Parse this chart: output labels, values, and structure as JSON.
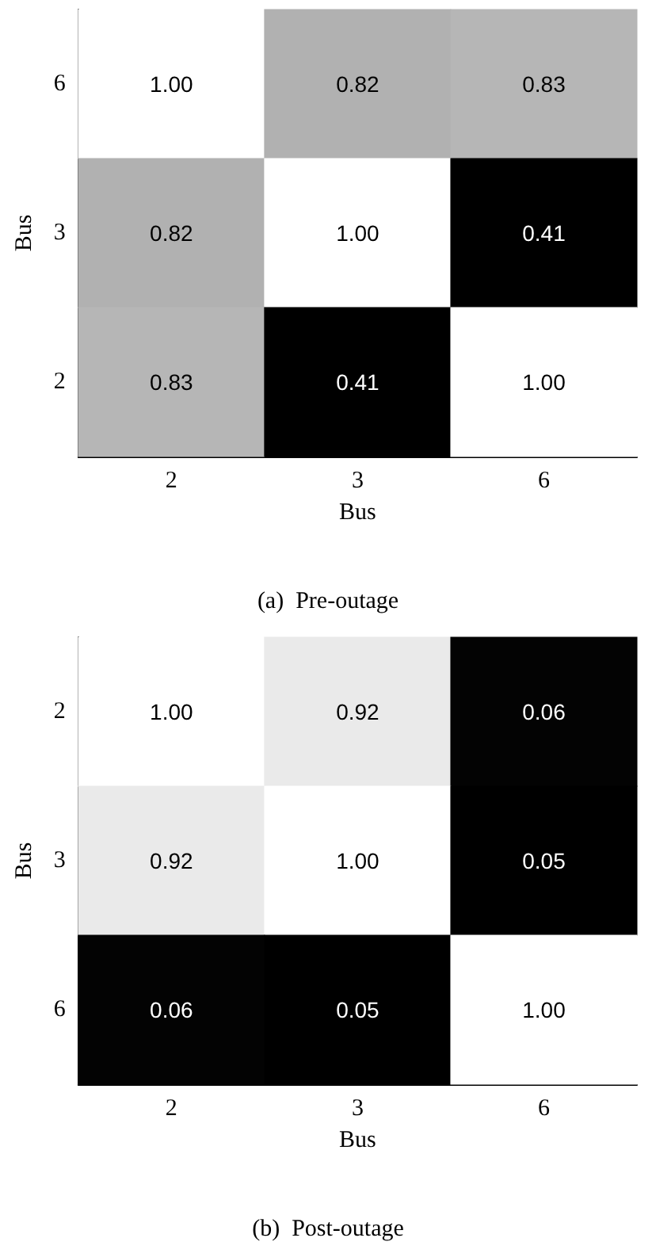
{
  "chart_data": [
    {
      "type": "heatmap",
      "title": "(a)  Pre-outage",
      "xlabel": "Bus",
      "ylabel": "Bus",
      "categories": [
        "2",
        "3",
        "6"
      ],
      "y_categories": [
        "6",
        "3",
        "2"
      ],
      "cells": [
        [
          1.0,
          0.82,
          0.83
        ],
        [
          0.82,
          1.0,
          0.41
        ],
        [
          0.83,
          0.41,
          1.0
        ]
      ],
      "cell_labels": [
        [
          "1.00",
          "0.82",
          "0.83"
        ],
        [
          "0.82",
          "1.00",
          "0.41"
        ],
        [
          "0.83",
          "0.41",
          "1.00"
        ]
      ]
    },
    {
      "type": "heatmap",
      "title": "(b)  Post-outage",
      "xlabel": "Bus",
      "ylabel": "Bus",
      "categories": [
        "2",
        "3",
        "6"
      ],
      "y_categories": [
        "2",
        "3",
        "6"
      ],
      "cells": [
        [
          1.0,
          0.92,
          0.06
        ],
        [
          0.92,
          1.0,
          0.05
        ],
        [
          0.06,
          0.05,
          1.0
        ]
      ],
      "cell_labels": [
        [
          "1.00",
          "0.92",
          "0.06"
        ],
        [
          "0.92",
          "1.00",
          "0.05"
        ],
        [
          "0.06",
          "0.05",
          "1.00"
        ]
      ]
    }
  ]
}
